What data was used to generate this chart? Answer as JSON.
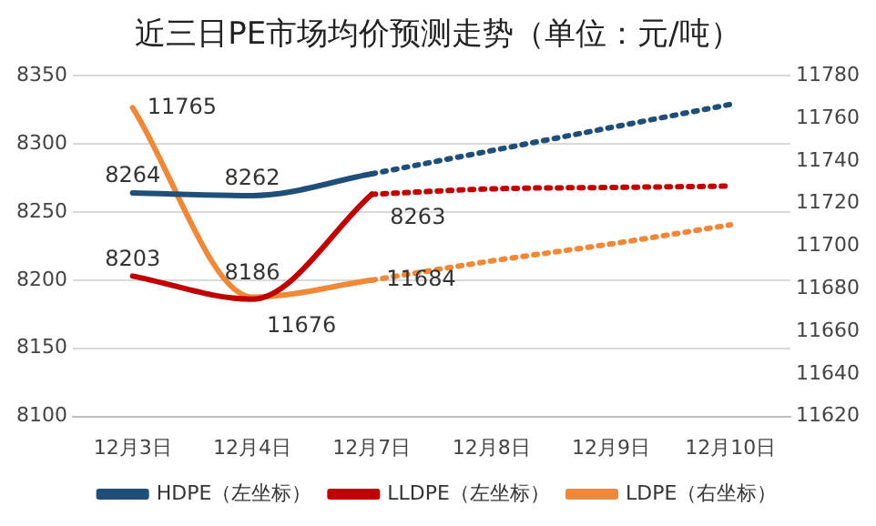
{
  "chart_data": {
    "type": "line",
    "title": "近三日PE市场均价预测走势（单位：元/吨）",
    "categories": [
      "12月3日",
      "12月4日",
      "12月7日",
      "12月8日",
      "12月9日",
      "12月10日"
    ],
    "series": [
      {
        "name": "HDPE（左坐标）",
        "color": "#1f4e79",
        "values": [
          8264,
          8262,
          8278,
          null,
          null,
          null
        ],
        "value_labels": [
          "8264",
          "8262",
          null,
          null,
          null,
          null
        ]
      },
      {
        "name": "LLDPE（左坐标）",
        "color": "#c00000",
        "values": [
          8203,
          8186,
          8263,
          null,
          null,
          null
        ],
        "value_labels": [
          "8203",
          "8186",
          "8263",
          null,
          null,
          null
        ]
      },
      {
        "name": "LDPE（右坐标）",
        "color": "#f0883a",
        "axis": "y2",
        "values": [
          11765,
          11676,
          11684,
          null,
          null,
          null
        ],
        "value_labels": [
          "11765",
          "11676",
          "11684",
          null,
          null,
          null
        ]
      },
      {
        "color": "#1f4e79",
        "line_style": "dotted",
        "values": [
          null,
          null,
          8278,
          8295,
          8312,
          8329
        ]
      },
      {
        "color": "#c00000",
        "line_style": "dotted",
        "values": [
          null,
          null,
          8263,
          8267,
          8268,
          8269
        ]
      },
      {
        "color": "#f0883a",
        "line_style": "dotted",
        "axis": "y2",
        "values": [
          null,
          null,
          11684,
          11693,
          11701,
          11710
        ]
      }
    ],
    "ylim": [
      8100,
      8350
    ],
    "yticks": [
      8100,
      8150,
      8200,
      8250,
      8300,
      8350
    ],
    "y2lim": [
      11620,
      11780
    ],
    "y2ticks": [
      11620,
      11640,
      11660,
      11680,
      11700,
      11720,
      11740,
      11760,
      11780
    ],
    "grid": "y",
    "legend": "bottom",
    "marker": "none"
  }
}
